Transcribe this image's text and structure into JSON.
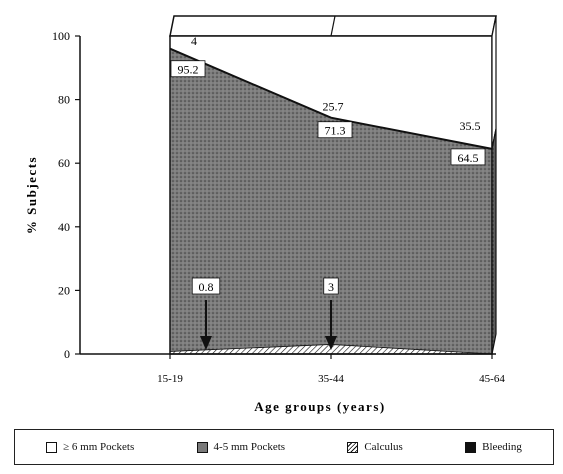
{
  "chart_data": {
    "type": "area",
    "categories": [
      "15-19",
      "35-44",
      "45-64"
    ],
    "series": [
      {
        "name": "Bleeding",
        "values": [
          0,
          0,
          0
        ]
      },
      {
        "name": "Calculus",
        "values": [
          0.8,
          3,
          0
        ]
      },
      {
        "name": "4-5 mm Pockets",
        "values": [
          95.2,
          71.3,
          64.5
        ]
      },
      {
        "name": "≥ 6 mm Pockets",
        "values": [
          4,
          25.7,
          35.5
        ]
      }
    ],
    "data_labels": {
      "top": [
        "4",
        "25.7",
        "35.5"
      ],
      "middle": [
        "95.2",
        "71.3",
        "64.5"
      ],
      "bottom": [
        "0.8",
        "3"
      ]
    },
    "xlabel": "Age groups (years)",
    "ylabel": "% Subjects",
    "ylim": [
      0,
      100
    ],
    "yticks": [
      "0",
      "20",
      "40",
      "60",
      "80",
      "100"
    ],
    "stacked": true,
    "grid": false,
    "legend_position": "bottom"
  },
  "legend": [
    {
      "label": "≥ 6 mm Pockets",
      "swatch": "white"
    },
    {
      "label": "4-5 mm Pockets",
      "swatch": "stipple"
    },
    {
      "label": "Calculus",
      "swatch": "hatch"
    },
    {
      "label": "Bleeding",
      "swatch": "black"
    }
  ],
  "colors": {
    "stipple": "#6e6e6e",
    "ink": "#111111",
    "background": "#ffffff"
  }
}
